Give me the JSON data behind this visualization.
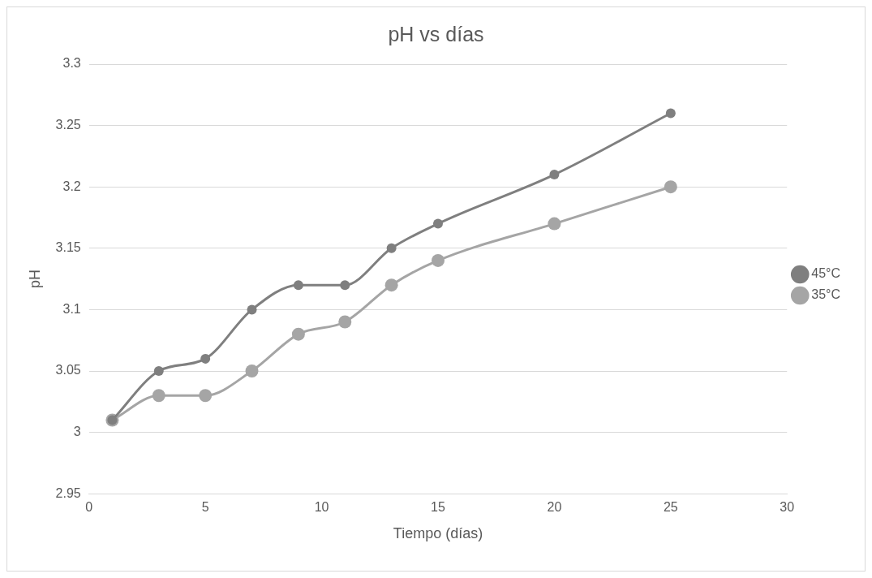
{
  "chart_data": {
    "type": "line",
    "title": "pH vs días",
    "xlabel": "Tiempo (días)",
    "ylabel": "pH",
    "x": [
      1,
      3,
      5,
      7,
      9,
      11,
      13,
      15,
      20,
      25
    ],
    "series": [
      {
        "name": "35°C",
        "color": "#a5a5a5",
        "values": [
          3.01,
          3.03,
          3.03,
          3.05,
          3.08,
          3.09,
          3.12,
          3.14,
          3.17,
          3.2
        ]
      },
      {
        "name": "45°C",
        "color": "#7f7f7f",
        "values": [
          3.01,
          3.05,
          3.06,
          3.1,
          3.12,
          3.12,
          3.15,
          3.17,
          3.21,
          3.26
        ]
      }
    ],
    "xlim": [
      0,
      30
    ],
    "xticks": [
      0,
      5,
      10,
      15,
      20,
      25,
      30
    ],
    "ylim": [
      2.95,
      3.3
    ],
    "yticks": [
      2.95,
      3,
      3.05,
      3.1,
      3.15,
      3.2,
      3.25,
      3.3
    ],
    "grid": "y",
    "legend": "right",
    "marker": "circle",
    "line_style": "solid"
  }
}
